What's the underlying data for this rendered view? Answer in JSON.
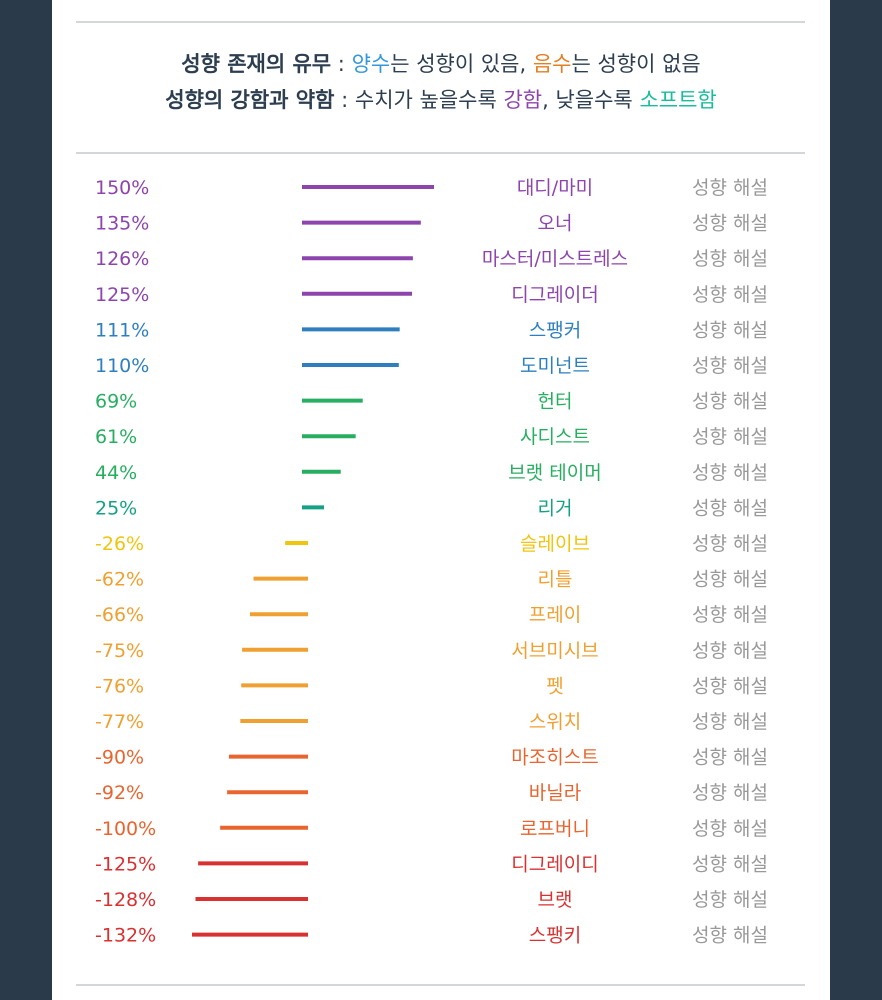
{
  "header": {
    "line1": {
      "title": "성향 존재의 유무",
      "sep": " : ",
      "pos_word": "양수",
      "pos_rest": "는 성향이 있음, ",
      "neg_word": "음수",
      "neg_rest": "는 성향이 없음"
    },
    "line2": {
      "title": "성향의 강함과 약함",
      "sep": " : 수치가 높을수록 ",
      "strong_word": "강함",
      "mid": ", 낮을수록 ",
      "soft_word": "소프트함"
    }
  },
  "colors": {
    "title": "#2c3e50",
    "positive": "#3498db",
    "negative": "#e67e22",
    "strong": "#8e44ad",
    "soft": "#1abc9c",
    "desc": "#999999"
  },
  "chart_data": {
    "type": "bar",
    "orientation": "horizontal",
    "unit": "%",
    "categories": [
      "대디/마미",
      "오너",
      "마스터/미스트레스",
      "디그레이더",
      "스팽커",
      "도미넌트",
      "헌터",
      "사디스트",
      "브랫 테이머",
      "리거",
      "슬레이브",
      "리틀",
      "프레이",
      "서브미시브",
      "펫",
      "스위치",
      "마조히스트",
      "바닐라",
      "로프버니",
      "디그레이디",
      "브랫",
      "스팽키"
    ],
    "values": [
      150,
      135,
      126,
      125,
      111,
      110,
      69,
      61,
      44,
      25,
      -26,
      -62,
      -66,
      -75,
      -76,
      -77,
      -90,
      -92,
      -100,
      -125,
      -128,
      -132
    ],
    "labels": [
      "150%",
      "135%",
      "126%",
      "125%",
      "111%",
      "110%",
      "69%",
      "61%",
      "44%",
      "25%",
      "-26%",
      "-62%",
      "-66%",
      "-75%",
      "-76%",
      "-77%",
      "-90%",
      "-92%",
      "-100%",
      "-125%",
      "-128%",
      "-132%"
    ],
    "series_colors": [
      "#8e44ad",
      "#8e44ad",
      "#8e44ad",
      "#8e44ad",
      "#2e7fbf",
      "#2e7fbf",
      "#27ae60",
      "#27ae60",
      "#27ae60",
      "#16a085",
      "#f1c40f",
      "#f0a030",
      "#f0a030",
      "#f0a030",
      "#f0a030",
      "#f0a030",
      "#e8652f",
      "#e8652f",
      "#e8652f",
      "#d93030",
      "#d93030",
      "#d93030"
    ],
    "link_text": "성향 해설"
  }
}
